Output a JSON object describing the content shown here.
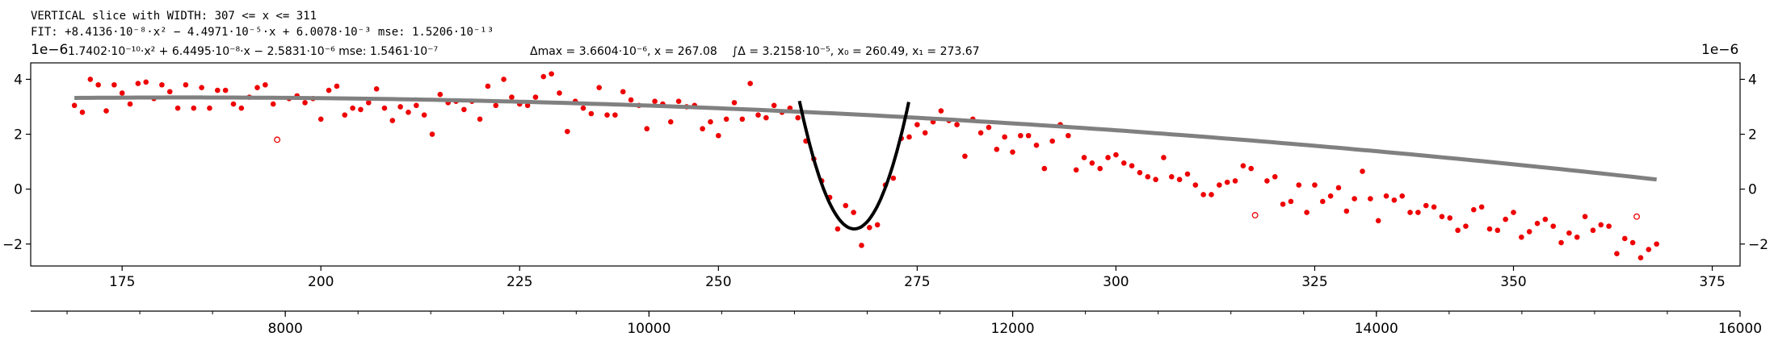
{
  "header": {
    "line1": "VERTICAL slice with WIDTH: 307 <= x <= 311",
    "line2": "FIT: +8.4136·10⁻⁸·x² − 4.4971·10⁻⁵·x + 6.0078·10⁻³ mse: 1.5206·10⁻¹³",
    "line3_left": "1e−6",
    "line3_fit": "1.7402·10⁻¹⁰·x² + 6.4495·10⁻⁸·x − 2.5831·10⁻⁶ mse: 1.5461·10⁻⁷",
    "line3_delta": "Δmax = 3.6604·10⁻⁶, x = 267.08",
    "line3_integral": "∫Δ = 3.2158·10⁻⁵, x₀ = 260.49, x₁ = 273.67",
    "scale_right": "1e−6"
  },
  "chart_data": {
    "type": "scatter",
    "x_ticks": [
      "175",
      "200",
      "225",
      "250",
      "275",
      "300",
      "325",
      "350",
      "375"
    ],
    "y_ticks": [
      "−2",
      "0",
      "2",
      "4"
    ],
    "x_ticks_secondary": [
      "8000",
      "10000",
      "12000",
      "14000",
      "16000"
    ],
    "xlim": [
      163.5,
      378.5
    ],
    "ylim": [
      -2.8,
      4.6
    ],
    "secondary_xlim": [
      6600,
      16000
    ],
    "y_scale_label": "1e−6",
    "points": [
      [
        169,
        3.05
      ],
      [
        170,
        2.8
      ],
      [
        171,
        4.0
      ],
      [
        172,
        3.8
      ],
      [
        173,
        2.85
      ],
      [
        174,
        3.8
      ],
      [
        175,
        3.5
      ],
      [
        176,
        3.1
      ],
      [
        177,
        3.85
      ],
      [
        178,
        3.9
      ],
      [
        179,
        3.3
      ],
      [
        180,
        3.8
      ],
      [
        181,
        3.55
      ],
      [
        182,
        2.95
      ],
      [
        183,
        3.8
      ],
      [
        184,
        2.95
      ],
      [
        185,
        3.7
      ],
      [
        186,
        2.95
      ],
      [
        187,
        3.6
      ],
      [
        188,
        3.6
      ],
      [
        189,
        3.1
      ],
      [
        190,
        2.95
      ],
      [
        191,
        3.35
      ],
      [
        192,
        3.7
      ],
      [
        193,
        3.8
      ],
      [
        194,
        3.1
      ],
      [
        196,
        3.3
      ],
      [
        197,
        3.4
      ],
      [
        198,
        3.15
      ],
      [
        199,
        3.3
      ],
      [
        200,
        2.55
      ],
      [
        201,
        3.6
      ],
      [
        202,
        3.75
      ],
      [
        203,
        2.7
      ],
      [
        204,
        2.95
      ],
      [
        205,
        2.9
      ],
      [
        206,
        3.15
      ],
      [
        207,
        3.65
      ],
      [
        208,
        2.95
      ],
      [
        209,
        2.5
      ],
      [
        210,
        3.0
      ],
      [
        211,
        2.8
      ],
      [
        212,
        3.05
      ],
      [
        213,
        2.7
      ],
      [
        214,
        2.0
      ],
      [
        215,
        3.45
      ],
      [
        216,
        3.15
      ],
      [
        217,
        3.2
      ],
      [
        218,
        2.9
      ],
      [
        219,
        3.2
      ],
      [
        220,
        2.55
      ],
      [
        221,
        3.75
      ],
      [
        222,
        3.05
      ],
      [
        223,
        4.0
      ],
      [
        224,
        3.35
      ],
      [
        225,
        3.1
      ],
      [
        226,
        3.05
      ],
      [
        227,
        3.35
      ],
      [
        228,
        4.1
      ],
      [
        229,
        4.2
      ],
      [
        230,
        3.5
      ],
      [
        231,
        2.1
      ],
      [
        232,
        3.2
      ],
      [
        233,
        2.95
      ],
      [
        234,
        2.75
      ],
      [
        235,
        3.7
      ],
      [
        236,
        2.7
      ],
      [
        237,
        2.7
      ],
      [
        238,
        3.55
      ],
      [
        239,
        3.25
      ],
      [
        240,
        3.05
      ],
      [
        241,
        2.2
      ],
      [
        242,
        3.2
      ],
      [
        243,
        3.1
      ],
      [
        244,
        2.45
      ],
      [
        245,
        3.2
      ],
      [
        246,
        3.0
      ],
      [
        247,
        3.05
      ],
      [
        248,
        2.2
      ],
      [
        249,
        2.45
      ],
      [
        250,
        1.95
      ],
      [
        251,
        2.55
      ],
      [
        252,
        3.15
      ],
      [
        253,
        2.55
      ],
      [
        254,
        3.85
      ],
      [
        255,
        2.7
      ],
      [
        256,
        2.6
      ],
      [
        257,
        3.05
      ],
      [
        258,
        2.8
      ],
      [
        259,
        2.95
      ],
      [
        260,
        2.6
      ],
      [
        261,
        1.75
      ],
      [
        262,
        1.1
      ],
      [
        263,
        0.3
      ],
      [
        264,
        -0.3
      ],
      [
        265,
        -1.45
      ],
      [
        266,
        -0.6
      ],
      [
        267,
        -0.85
      ],
      [
        268,
        -2.05
      ],
      [
        269,
        -1.4
      ],
      [
        270,
        -1.3
      ],
      [
        271,
        0.15
      ],
      [
        272,
        0.4
      ],
      [
        273,
        1.85
      ],
      [
        274,
        1.9
      ],
      [
        275,
        2.35
      ],
      [
        276,
        2.05
      ],
      [
        277,
        2.45
      ],
      [
        278,
        2.85
      ],
      [
        279,
        2.5
      ],
      [
        280,
        2.35
      ],
      [
        281,
        1.2
      ],
      [
        282,
        2.55
      ],
      [
        283,
        2.05
      ],
      [
        284,
        2.25
      ],
      [
        285,
        1.45
      ],
      [
        286,
        1.9
      ],
      [
        287,
        1.35
      ],
      [
        288,
        1.95
      ],
      [
        289,
        1.95
      ],
      [
        290,
        1.6
      ],
      [
        291,
        0.75
      ],
      [
        292,
        1.75
      ],
      [
        293,
        2.35
      ],
      [
        294,
        1.95
      ],
      [
        295,
        0.7
      ],
      [
        296,
        1.15
      ],
      [
        297,
        0.95
      ],
      [
        298,
        0.75
      ],
      [
        299,
        1.15
      ],
      [
        300,
        1.25
      ],
      [
        301,
        0.95
      ],
      [
        302,
        0.85
      ],
      [
        303,
        0.6
      ],
      [
        304,
        0.45
      ],
      [
        305,
        0.35
      ],
      [
        306,
        1.15
      ],
      [
        307,
        0.45
      ],
      [
        308,
        0.35
      ],
      [
        309,
        0.55
      ],
      [
        310,
        0.15
      ],
      [
        311,
        -0.2
      ],
      [
        312,
        -0.2
      ],
      [
        313,
        0.15
      ],
      [
        314,
        0.25
      ],
      [
        315,
        0.3
      ],
      [
        316,
        0.85
      ],
      [
        317,
        0.75
      ],
      [
        319,
        0.3
      ],
      [
        320,
        0.45
      ],
      [
        321,
        -0.55
      ],
      [
        322,
        -0.45
      ],
      [
        323,
        0.15
      ],
      [
        324,
        -0.85
      ],
      [
        325,
        0.15
      ],
      [
        326,
        -0.45
      ],
      [
        327,
        -0.25
      ],
      [
        328,
        0.05
      ],
      [
        329,
        -0.8
      ],
      [
        330,
        -0.35
      ],
      [
        331,
        0.65
      ],
      [
        332,
        -0.35
      ],
      [
        333,
        -1.15
      ],
      [
        334,
        -0.25
      ],
      [
        335,
        -0.4
      ],
      [
        336,
        -0.25
      ],
      [
        337,
        -0.85
      ],
      [
        338,
        -0.85
      ],
      [
        339,
        -0.6
      ],
      [
        340,
        -0.65
      ],
      [
        341,
        -1.0
      ],
      [
        342,
        -1.05
      ],
      [
        343,
        -1.5
      ],
      [
        344,
        -1.35
      ],
      [
        345,
        -0.75
      ],
      [
        346,
        -0.65
      ],
      [
        347,
        -1.45
      ],
      [
        348,
        -1.5
      ],
      [
        349,
        -1.1
      ],
      [
        350,
        -0.85
      ],
      [
        351,
        -1.75
      ],
      [
        352,
        -1.55
      ],
      [
        353,
        -1.25
      ],
      [
        354,
        -1.1
      ],
      [
        355,
        -1.35
      ],
      [
        356,
        -1.95
      ],
      [
        357,
        -1.6
      ],
      [
        358,
        -1.75
      ],
      [
        359,
        -1.0
      ],
      [
        360,
        -1.5
      ],
      [
        361,
        -1.3
      ],
      [
        362,
        -1.35
      ],
      [
        363,
        -2.35
      ],
      [
        364,
        -1.8
      ],
      [
        365,
        -1.95
      ],
      [
        366,
        -2.5
      ],
      [
        367,
        -2.2
      ],
      [
        368,
        -2.0
      ]
    ],
    "outliers": [
      [
        194.5,
        1.8
      ],
      [
        317.5,
        -0.95
      ],
      [
        365.5,
        -1.0
      ]
    ],
    "fit_curve": {
      "x": [
        169,
        368
      ],
      "a": -8.73e-05,
      "b": 0.03195,
      "c": 0.416
    },
    "dip_curve": {
      "x0": 260.49,
      "x1": 273.67,
      "xmin": 267.08,
      "ymin": -1.45
    },
    "colors": {
      "points": "#ee0000",
      "fit": "#808080",
      "dip": "#000000",
      "axes": "#000000"
    }
  }
}
